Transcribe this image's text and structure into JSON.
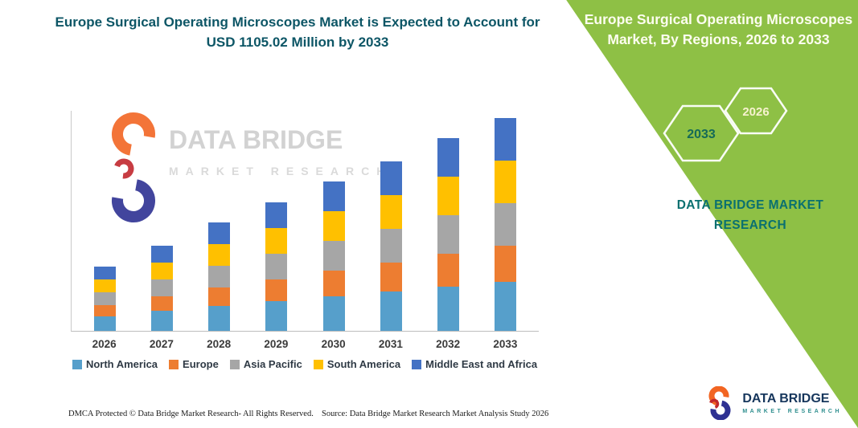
{
  "headline": "Europe Surgical Operating Microscopes Market is Expected to Account for USD 1105.02 Million by 2033",
  "right_panel": {
    "title": "Europe Surgical Operating Microscopes Market, By Regions, 2026 to 2033",
    "hexagons": {
      "back_year": "2033",
      "front_year": "2026"
    },
    "brand": "DATA BRIDGE MARKET RESEARCH"
  },
  "watermark": {
    "name": "DATA BRIDGE",
    "sub": "MARKET RESEARCH"
  },
  "footer": {
    "dmca": "DMCA Protected © Data Bridge Market Research-  All Rights Reserved.",
    "source": "Source: Data Bridge Market Research  Market Analysis Study 2026"
  },
  "brand_logo": {
    "name": "DATA BRIDGE",
    "sub": "MARKET RESEARCH"
  },
  "colors": {
    "green": "#8EC045",
    "headline_teal": "#0D5666",
    "brand_teal": "#0A7070"
  },
  "chart_data": {
    "type": "bar",
    "stacked": true,
    "title": "",
    "xlabel": "",
    "ylabel": "",
    "unit": "USD Million",
    "values_estimated": true,
    "ylim": [
      0,
      1200
    ],
    "y_axis_labels_visible": false,
    "grid": false,
    "legend_position": "bottom",
    "categories": [
      "2026",
      "2027",
      "2028",
      "2029",
      "2030",
      "2031",
      "2032",
      "2033"
    ],
    "series": [
      {
        "name": "North America",
        "color": "#569FCB",
        "values": [
          77,
          103,
          129,
          153,
          179,
          203,
          229,
          254
        ]
      },
      {
        "name": "Europe",
        "color": "#ED7D31",
        "values": [
          57,
          76,
          95,
          113,
          133,
          150,
          169,
          188
        ]
      },
      {
        "name": "Asia Pacific",
        "color": "#A6A6A6",
        "values": [
          67,
          89,
          112,
          133,
          156,
          177,
          199,
          221
        ]
      },
      {
        "name": "South America",
        "color": "#FFC000",
        "values": [
          67,
          89,
          112,
          133,
          156,
          177,
          199,
          221
        ]
      },
      {
        "name": "Middle East and Africa",
        "color": "#4472C4",
        "values": [
          66,
          89,
          111,
          135,
          156,
          177,
          201,
          221
        ]
      }
    ],
    "totals": [
      334,
      446,
      559,
      667,
      780,
      884,
      997,
      1105.02
    ]
  }
}
